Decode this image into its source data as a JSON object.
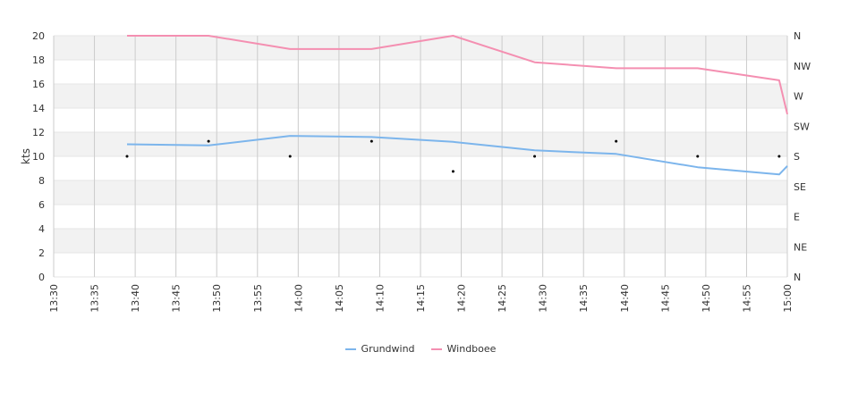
{
  "chart_data": {
    "type": "line",
    "ylabel": "kts",
    "ylim": [
      0,
      20
    ],
    "y_ticks": [
      0,
      2,
      4,
      6,
      8,
      10,
      12,
      14,
      16,
      18,
      20
    ],
    "x_ticks": [
      "13:30",
      "13:35",
      "13:40",
      "13:45",
      "13:50",
      "13:55",
      "14:00",
      "14:05",
      "14:10",
      "14:15",
      "14:20",
      "14:25",
      "14:30",
      "14:35",
      "14:40",
      "14:45",
      "14:50",
      "14:55",
      "15:00"
    ],
    "right_axis_ticks": [
      "N",
      "NE",
      "E",
      "SE",
      "S",
      "SW",
      "W",
      "NW",
      "N"
    ],
    "x": [
      "13:39",
      "13:49",
      "13:59",
      "14:09",
      "14:19",
      "14:29",
      "14:39",
      "14:49",
      "14:59",
      "15:00"
    ],
    "series": [
      {
        "name": "Grundwind",
        "color": "#7cb5ec",
        "values": [
          11.0,
          10.9,
          11.7,
          11.6,
          11.2,
          10.5,
          10.2,
          9.1,
          8.5,
          9.2
        ]
      },
      {
        "name": "Windboee",
        "color": "#f48fb1",
        "values": [
          20.0,
          20.0,
          18.9,
          18.9,
          20.0,
          17.8,
          17.3,
          17.3,
          16.3,
          13.5
        ]
      }
    ],
    "direction_points": [
      {
        "x": "13:39",
        "value": "S"
      },
      {
        "x": "13:49",
        "value": "SSW"
      },
      {
        "x": "13:59",
        "value": "S"
      },
      {
        "x": "14:09",
        "value": "SSW"
      },
      {
        "x": "14:19",
        "value": "SSE"
      },
      {
        "x": "14:29",
        "value": "S"
      },
      {
        "x": "14:39",
        "value": "SSW"
      },
      {
        "x": "14:49",
        "value": "S"
      },
      {
        "x": "14:59",
        "value": "S"
      }
    ],
    "direction_scale": {
      "N": 0,
      "NNE": 1.25,
      "NE": 2.5,
      "ENE": 3.75,
      "E": 5,
      "ESE": 6.25,
      "SE": 7.5,
      "SSE": 8.75,
      "S": 10,
      "SSW": 11.25,
      "SW": 12.5,
      "WSW": 13.75,
      "W": 15,
      "WNW": 16.25,
      "NW": 17.5,
      "NNW": 18.75
    },
    "grid": true,
    "legend_position": "bottom"
  }
}
